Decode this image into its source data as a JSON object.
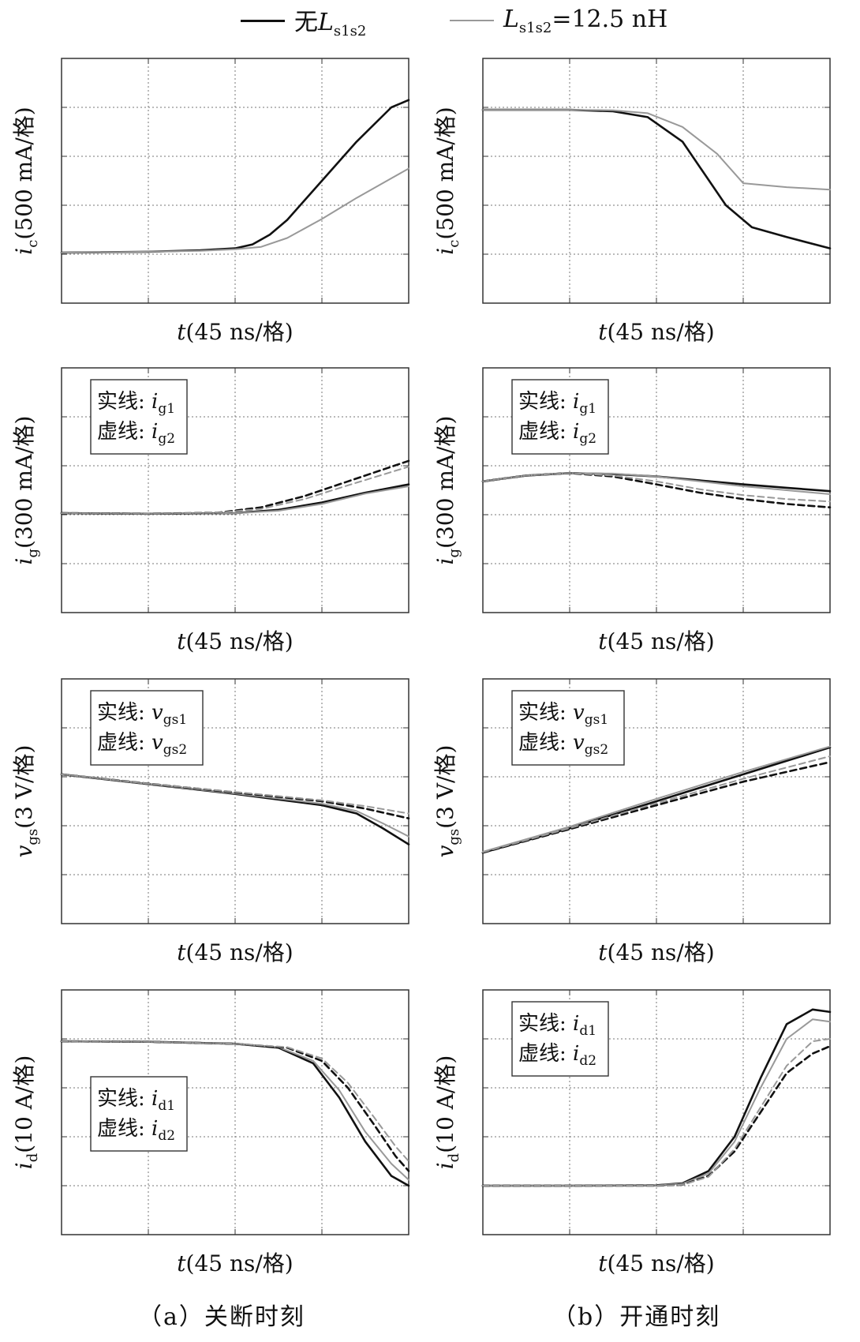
{
  "legend": {
    "items": [
      {
        "prefix": "无",
        "symbol": "L",
        "sub": "s1s2",
        "suffix": "",
        "color": "#111111"
      },
      {
        "prefix": "",
        "symbol": "L",
        "sub": "s1s2",
        "suffix": "=12.5 nH",
        "color": "#999999"
      }
    ]
  },
  "captions": {
    "left": "（a）关断时刻",
    "right": "（b）开通时刻"
  },
  "colors": {
    "no_L": "#111111",
    "with_L": "#999999",
    "grid": "#777777"
  },
  "chart_data": [
    {
      "id": "ic-off",
      "type": "line",
      "column": "a",
      "row": 0,
      "ylabel": {
        "sym": "i",
        "sub": "c",
        "unit": "(500 mA/格)"
      },
      "xlabel": {
        "sym": "t",
        "unit": "(45 ns/格)"
      },
      "xlim": [
        0,
        4
      ],
      "ylim": [
        0,
        5
      ],
      "series": [
        {
          "ref": "no_L",
          "dashed": false,
          "x": [
            0,
            1,
            1.6,
            2,
            2.2,
            2.4,
            2.6,
            3,
            3.4,
            3.8,
            4
          ],
          "y": [
            1.03,
            1.05,
            1.08,
            1.12,
            1.2,
            1.4,
            1.7,
            2.5,
            3.3,
            4.0,
            4.15
          ]
        },
        {
          "ref": "with_L",
          "dashed": false,
          "x": [
            0,
            1,
            1.6,
            2,
            2.3,
            2.6,
            3,
            3.4,
            3.8,
            4
          ],
          "y": [
            1.03,
            1.05,
            1.07,
            1.1,
            1.15,
            1.33,
            1.72,
            2.15,
            2.55,
            2.75
          ]
        }
      ]
    },
    {
      "id": "ic-on",
      "type": "line",
      "column": "b",
      "row": 0,
      "ylabel": {
        "sym": "i",
        "sub": "c",
        "unit": "(500 mA/格)"
      },
      "xlabel": {
        "sym": "t",
        "unit": "(45 ns/格)"
      },
      "xlim": [
        0,
        4
      ],
      "ylim": [
        0,
        5
      ],
      "series": [
        {
          "ref": "no_L",
          "dashed": false,
          "x": [
            0,
            1,
            1.5,
            1.9,
            2.3,
            2.8,
            3.1,
            3.5,
            4
          ],
          "y": [
            3.95,
            3.95,
            3.92,
            3.8,
            3.3,
            2.0,
            1.55,
            1.35,
            1.12
          ]
        },
        {
          "ref": "with_L",
          "dashed": false,
          "x": [
            0,
            1,
            1.5,
            1.9,
            2.3,
            2.7,
            3,
            3.5,
            4
          ],
          "y": [
            3.95,
            3.95,
            3.94,
            3.88,
            3.6,
            3.05,
            2.45,
            2.37,
            2.32
          ]
        }
      ]
    },
    {
      "id": "ig-off",
      "type": "line",
      "column": "a",
      "row": 1,
      "ylabel": {
        "sym": "i",
        "sub": "g",
        "unit": "(300 mA/格)"
      },
      "xlabel": {
        "sym": "t",
        "unit": "(45 ns/格)"
      },
      "xlim": [
        0,
        4
      ],
      "ylim": [
        0,
        5
      ],
      "annotation": {
        "solid": "实线:",
        "dashed": "虚线:",
        "sym": "i",
        "s1": "g1",
        "s2": "g2",
        "pos": "top-left"
      },
      "series": [
        {
          "ref": "no_L",
          "dashed": false,
          "x": [
            0,
            1,
            2,
            2.5,
            3,
            3.5,
            4
          ],
          "y": [
            2.03,
            2.02,
            2.03,
            2.1,
            2.25,
            2.45,
            2.62
          ]
        },
        {
          "ref": "with_L",
          "dashed": false,
          "x": [
            0,
            1,
            2,
            2.5,
            3,
            3.5,
            4
          ],
          "y": [
            2.03,
            2.02,
            2.03,
            2.08,
            2.22,
            2.43,
            2.58
          ]
        },
        {
          "ref": "no_L",
          "dashed": true,
          "x": [
            0,
            1,
            1.8,
            2.3,
            2.8,
            3.3,
            4
          ],
          "y": [
            2.03,
            2.02,
            2.04,
            2.15,
            2.38,
            2.68,
            3.1
          ]
        },
        {
          "ref": "with_L",
          "dashed": true,
          "x": [
            0,
            1,
            1.8,
            2.3,
            2.8,
            3.3,
            4
          ],
          "y": [
            2.03,
            2.02,
            2.04,
            2.12,
            2.32,
            2.6,
            2.98
          ]
        }
      ]
    },
    {
      "id": "ig-on",
      "type": "line",
      "column": "b",
      "row": 1,
      "ylabel": {
        "sym": "i",
        "sub": "g",
        "unit": "(300 mA/格)"
      },
      "xlabel": {
        "sym": "t",
        "unit": "(45 ns/格)"
      },
      "xlim": [
        0,
        4
      ],
      "ylim": [
        0,
        5
      ],
      "annotation": {
        "solid": "实线:",
        "dashed": "虚线:",
        "sym": "i",
        "s1": "g1",
        "s2": "g2",
        "pos": "top-left"
      },
      "series": [
        {
          "ref": "no_L",
          "dashed": false,
          "x": [
            0,
            0.5,
            1,
            1.5,
            2,
            2.5,
            3,
            3.5,
            4
          ],
          "y": [
            2.68,
            2.8,
            2.85,
            2.83,
            2.78,
            2.7,
            2.62,
            2.55,
            2.48
          ]
        },
        {
          "ref": "with_L",
          "dashed": false,
          "x": [
            0,
            0.5,
            1,
            1.5,
            2,
            2.5,
            3,
            3.5,
            4
          ],
          "y": [
            2.68,
            2.8,
            2.85,
            2.84,
            2.78,
            2.68,
            2.58,
            2.5,
            2.42
          ]
        },
        {
          "ref": "no_L",
          "dashed": true,
          "x": [
            0,
            0.5,
            1,
            1.5,
            2,
            2.5,
            3,
            3.5,
            4
          ],
          "y": [
            2.68,
            2.8,
            2.85,
            2.78,
            2.62,
            2.45,
            2.32,
            2.22,
            2.15
          ]
        },
        {
          "ref": "with_L",
          "dashed": true,
          "x": [
            0,
            0.5,
            1,
            1.5,
            2,
            2.5,
            3,
            3.5,
            4
          ],
          "y": [
            2.68,
            2.8,
            2.85,
            2.8,
            2.68,
            2.52,
            2.4,
            2.32,
            2.27
          ]
        }
      ]
    },
    {
      "id": "vgs-off",
      "type": "line",
      "column": "a",
      "row": 2,
      "ylabel": {
        "sym": "v",
        "sub": "gs",
        "unit": "(3 V/格)"
      },
      "xlabel": {
        "sym": "t",
        "unit": "(45 ns/格)"
      },
      "xlim": [
        0,
        4
      ],
      "ylim": [
        0,
        5
      ],
      "annotation": {
        "solid": "实线:",
        "dashed": "虚线:",
        "sym": "v",
        "s1": "gs1",
        "s2": "gs2",
        "pos": "top-left"
      },
      "series": [
        {
          "ref": "no_L",
          "dashed": false,
          "x": [
            0,
            1,
            2,
            3,
            3.4,
            3.7,
            4
          ],
          "y": [
            3.05,
            2.85,
            2.65,
            2.42,
            2.25,
            1.95,
            1.62
          ]
        },
        {
          "ref": "with_L",
          "dashed": false,
          "x": [
            0,
            1,
            2,
            3,
            3.4,
            3.7,
            4
          ],
          "y": [
            3.05,
            2.85,
            2.66,
            2.45,
            2.3,
            2.05,
            1.78
          ]
        },
        {
          "ref": "no_L",
          "dashed": true,
          "x": [
            0,
            1,
            2,
            3,
            3.5,
            4
          ],
          "y": [
            3.05,
            2.86,
            2.68,
            2.5,
            2.35,
            2.15
          ]
        },
        {
          "ref": "with_L",
          "dashed": true,
          "x": [
            0,
            1,
            2,
            3,
            3.5,
            4
          ],
          "y": [
            3.05,
            2.86,
            2.69,
            2.52,
            2.4,
            2.25
          ]
        }
      ]
    },
    {
      "id": "vgs-on",
      "type": "line",
      "column": "b",
      "row": 2,
      "ylabel": {
        "sym": "v",
        "sub": "gs",
        "unit": "(3 V/格)"
      },
      "xlabel": {
        "sym": "t",
        "unit": "(45 ns/格)"
      },
      "xlim": [
        0,
        4
      ],
      "ylim": [
        0,
        5
      ],
      "annotation": {
        "solid": "实线:",
        "dashed": "虚线:",
        "sym": "v",
        "s1": "gs1",
        "s2": "gs2",
        "pos": "top-left"
      },
      "series": [
        {
          "ref": "no_L",
          "dashed": false,
          "x": [
            0,
            1,
            2,
            3,
            4
          ],
          "y": [
            1.45,
            1.95,
            2.5,
            3.05,
            3.6
          ]
        },
        {
          "ref": "with_L",
          "dashed": false,
          "x": [
            0,
            1,
            2,
            3,
            4
          ],
          "y": [
            1.47,
            1.98,
            2.55,
            3.1,
            3.62
          ]
        },
        {
          "ref": "no_L",
          "dashed": true,
          "x": [
            0,
            1,
            2,
            3,
            4
          ],
          "y": [
            1.45,
            1.93,
            2.42,
            2.9,
            3.3
          ]
        },
        {
          "ref": "with_L",
          "dashed": true,
          "x": [
            0,
            1,
            2,
            3,
            4
          ],
          "y": [
            1.46,
            1.95,
            2.46,
            2.96,
            3.42
          ]
        }
      ]
    },
    {
      "id": "id-off",
      "type": "line",
      "column": "a",
      "row": 3,
      "ylabel": {
        "sym": "i",
        "sub": "d",
        "unit": "(10 A/格)"
      },
      "xlabel": {
        "sym": "t",
        "unit": "(45 ns/格)"
      },
      "xlim": [
        0,
        4
      ],
      "ylim": [
        0,
        5
      ],
      "annotation": {
        "solid": "实线:",
        "dashed": "虚线:",
        "sym": "i",
        "s1": "d1",
        "s2": "d2",
        "pos": "bottom-left"
      },
      "series": [
        {
          "ref": "no_L",
          "dashed": false,
          "x": [
            0,
            1,
            2,
            2.5,
            2.9,
            3.2,
            3.5,
            3.8,
            4
          ],
          "y": [
            3.95,
            3.94,
            3.9,
            3.82,
            3.5,
            2.8,
            1.9,
            1.2,
            1.0
          ]
        },
        {
          "ref": "with_L",
          "dashed": false,
          "x": [
            0,
            1,
            2,
            2.5,
            2.9,
            3.2,
            3.5,
            3.8,
            4
          ],
          "y": [
            3.95,
            3.94,
            3.9,
            3.83,
            3.55,
            2.95,
            2.1,
            1.45,
            1.12
          ]
        },
        {
          "ref": "no_L",
          "dashed": true,
          "x": [
            0,
            1,
            2,
            2.6,
            3,
            3.3,
            3.6,
            3.85,
            4
          ],
          "y": [
            3.95,
            3.94,
            3.9,
            3.82,
            3.55,
            3.0,
            2.25,
            1.6,
            1.3
          ]
        },
        {
          "ref": "with_L",
          "dashed": true,
          "x": [
            0,
            1,
            2,
            2.6,
            3,
            3.3,
            3.6,
            3.85,
            4
          ],
          "y": [
            3.95,
            3.94,
            3.9,
            3.83,
            3.6,
            3.1,
            2.4,
            1.8,
            1.5
          ]
        }
      ]
    },
    {
      "id": "id-on",
      "type": "line",
      "column": "b",
      "row": 3,
      "ylabel": {
        "sym": "i",
        "sub": "d",
        "unit": "(10 A/格)"
      },
      "xlabel": {
        "sym": "t",
        "unit": "(45 ns/格)"
      },
      "xlim": [
        0,
        4
      ],
      "ylim": [
        0,
        5
      ],
      "annotation": {
        "solid": "实线:",
        "dashed": "虚线:",
        "sym": "i",
        "s1": "d1",
        "s2": "d2",
        "pos": "top-left"
      },
      "series": [
        {
          "ref": "no_L",
          "dashed": false,
          "x": [
            0,
            1,
            2,
            2.3,
            2.6,
            2.9,
            3.2,
            3.5,
            3.8,
            4
          ],
          "y": [
            1.0,
            1.0,
            1.01,
            1.05,
            1.3,
            2.0,
            3.2,
            4.3,
            4.6,
            4.55
          ]
        },
        {
          "ref": "with_L",
          "dashed": false,
          "x": [
            0,
            1,
            2,
            2.3,
            2.6,
            2.9,
            3.2,
            3.5,
            3.8,
            4
          ],
          "y": [
            1.0,
            1.0,
            1.01,
            1.04,
            1.25,
            1.9,
            3.0,
            4.0,
            4.4,
            4.35
          ]
        },
        {
          "ref": "no_L",
          "dashed": true,
          "x": [
            0,
            1,
            2,
            2.3,
            2.6,
            2.9,
            3.2,
            3.5,
            3.8,
            4
          ],
          "y": [
            1.0,
            1.0,
            1.0,
            1.02,
            1.2,
            1.7,
            2.5,
            3.3,
            3.7,
            3.85
          ]
        },
        {
          "ref": "with_L",
          "dashed": true,
          "x": [
            0,
            1,
            2,
            2.3,
            2.6,
            2.9,
            3.2,
            3.5,
            3.8,
            4
          ],
          "y": [
            1.0,
            1.0,
            1.0,
            1.02,
            1.18,
            1.75,
            2.6,
            3.45,
            3.95,
            4.0
          ]
        }
      ]
    }
  ]
}
